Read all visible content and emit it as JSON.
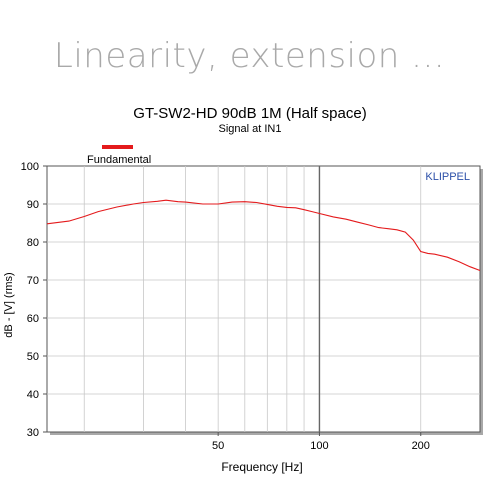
{
  "slide": {
    "title": "Linearity, extension ..."
  },
  "chart_data": {
    "type": "line",
    "title": "GT-SW2-HD  90dB 1M (Half space)",
    "subtitle": "Signal at IN1",
    "xlabel": "Frequency [Hz]",
    "ylabel": "dB - [V]  (rms)",
    "watermark": "KLIPPEL",
    "x_scale": "log",
    "xlim": [
      15.5,
      300
    ],
    "ylim": [
      30,
      100
    ],
    "x_ticks": [
      50,
      100,
      200
    ],
    "y_ticks": [
      30,
      40,
      50,
      60,
      70,
      80,
      90,
      100
    ],
    "x_grid": [
      20,
      30,
      40,
      50,
      60,
      70,
      80,
      90,
      100,
      200
    ],
    "marker_line_x": 100,
    "grid": true,
    "legend_position": "top-left",
    "series": [
      {
        "name": "Fundamental",
        "color": "#e41a1c",
        "x": [
          15.5,
          18,
          20,
          22,
          25,
          28,
          30,
          33,
          35,
          38,
          40,
          45,
          50,
          55,
          60,
          65,
          70,
          75,
          80,
          85,
          90,
          95,
          100,
          110,
          120,
          130,
          140,
          150,
          160,
          170,
          180,
          190,
          200,
          210,
          220,
          240,
          260,
          280,
          300
        ],
        "y": [
          84.8,
          85.5,
          86.7,
          88.0,
          89.2,
          90.0,
          90.4,
          90.7,
          91.0,
          90.6,
          90.5,
          90.0,
          90.0,
          90.5,
          90.6,
          90.4,
          89.9,
          89.4,
          89.1,
          89.0,
          88.5,
          88.0,
          87.5,
          86.6,
          86.0,
          85.2,
          84.5,
          83.8,
          83.5,
          83.2,
          82.6,
          80.5,
          77.5,
          77.0,
          76.8,
          76.0,
          74.8,
          73.5,
          72.5
        ]
      }
    ]
  }
}
